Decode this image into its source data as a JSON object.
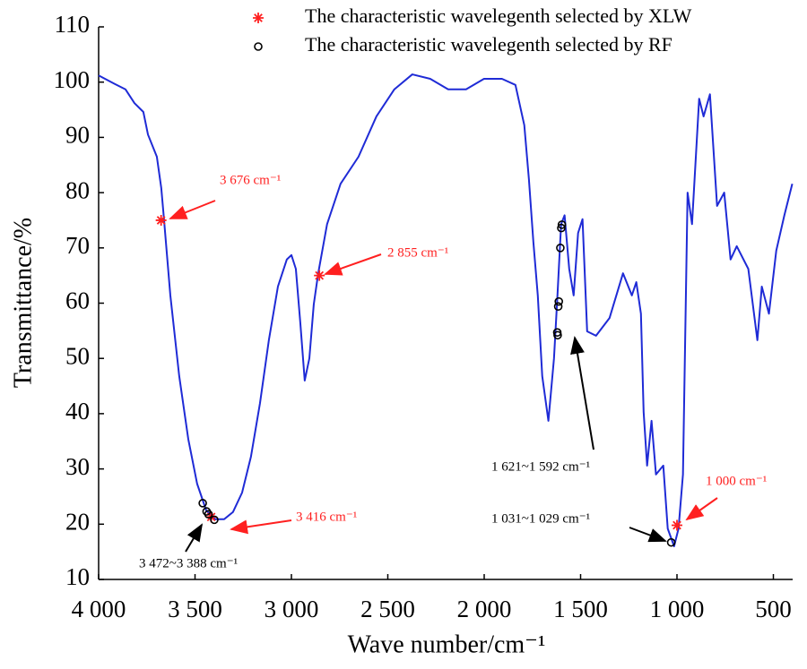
{
  "chart_data": {
    "type": "line",
    "xlabel": "Wave number/cm⁻¹",
    "ylabel": "Transmittance/%",
    "xlim": [
      4000,
      400
    ],
    "ylim": [
      10,
      110
    ],
    "xticks": [
      {
        "value": 4000,
        "label": "4 000"
      },
      {
        "value": 3500,
        "label": "3 500"
      },
      {
        "value": 3000,
        "label": "3 000"
      },
      {
        "value": 2500,
        "label": "2 500"
      },
      {
        "value": 2000,
        "label": "2 000"
      },
      {
        "value": 1500,
        "label": "1 500"
      },
      {
        "value": 1000,
        "label": "1 000"
      },
      500
    ],
    "yticks": [
      10,
      20,
      30,
      40,
      50,
      60,
      70,
      80,
      90,
      100,
      110
    ],
    "legend": "top",
    "series": [
      {
        "color": "#1f2bd6",
        "x": [
          4000,
          3907,
          3861,
          3814,
          3768,
          3744,
          3698,
          3675,
          3661,
          3628,
          3582,
          3535,
          3489,
          3442,
          3396,
          3349,
          3303,
          3256,
          3210,
          3163,
          3117,
          3070,
          3024,
          3000,
          2977,
          2954,
          2931,
          2907,
          2884,
          2861,
          2815,
          2745,
          2652,
          2559,
          2466,
          2373,
          2280,
          2187,
          2094,
          2001,
          1908,
          1838,
          1792,
          1768,
          1745,
          1722,
          1699,
          1667,
          1638,
          1620,
          1601,
          1583,
          1559,
          1536,
          1513,
          1490,
          1466,
          1420,
          1350,
          1280,
          1234,
          1211,
          1187,
          1173,
          1155,
          1132,
          1109,
          1071,
          1048,
          1015,
          992,
          969,
          945,
          922,
          885,
          862,
          829,
          792,
          755,
          722,
          690,
          630,
          583,
          560,
          523,
          485,
          443,
          402
        ],
        "values": [
          101.2,
          99.5,
          98.7,
          96.2,
          94.6,
          90.5,
          86.5,
          80.8,
          75.2,
          61.4,
          46.8,
          35.4,
          27.3,
          22.5,
          20.9,
          20.9,
          22.2,
          25.7,
          32.2,
          41.9,
          53.3,
          63,
          67.9,
          68.7,
          66.2,
          56.5,
          46,
          50,
          59.8,
          65.4,
          74.3,
          81.6,
          86.5,
          93.8,
          98.7,
          101.4,
          100.6,
          98.7,
          98.7,
          100.6,
          100.6,
          99.5,
          92.2,
          82.4,
          71.1,
          61.4,
          46.8,
          38.7,
          50,
          61.4,
          74.3,
          75.9,
          66.2,
          61.4,
          72.7,
          75.2,
          54.9,
          54.1,
          57.3,
          65.4,
          61.4,
          63.8,
          58.1,
          40.3,
          30.6,
          38.7,
          29,
          30.6,
          19.2,
          16,
          19.2,
          29,
          80,
          74.3,
          97,
          93.8,
          97.8,
          77.6,
          80,
          67.9,
          70.3,
          66.2,
          53.3,
          63,
          58.1,
          69.5,
          75.9,
          81.6
        ]
      },
      {
        "name": "The characteristic wavelegenth selected by XLW",
        "color": "#ff2020",
        "marker": "asterisk",
        "x": [
          3676,
          3416,
          2855,
          1000
        ],
        "values": [
          75,
          21.3,
          65,
          19.8
        ]
      },
      {
        "name": "The characteristic wavelegenth selected by RF",
        "color": "#000000",
        "marker": "circle",
        "x": [
          3460,
          3440,
          3430,
          3400,
          1621,
          1619,
          1616,
          1613,
          1605,
          1600,
          1597,
          1030
        ],
        "values": [
          23.8,
          22.3,
          21.8,
          20.8,
          54.7,
          54.2,
          59.4,
          60.3,
          70,
          73.6,
          74.2,
          16.7
        ]
      }
    ],
    "annotations": [
      {
        "text": "3 676 cm⁻¹",
        "color": "#ff2020"
      },
      {
        "text": "2 855 cm⁻¹",
        "color": "#ff2020"
      },
      {
        "text": "3 416 cm⁻¹",
        "color": "#ff2020"
      },
      {
        "text": "3 472~3 388 cm⁻¹",
        "color": "#000000"
      },
      {
        "text": "1 621~1 592 cm⁻¹",
        "color": "#000000"
      },
      {
        "text": "1 031~1 029 cm⁻¹",
        "color": "#000000"
      },
      {
        "text": "1 000 cm⁻¹",
        "color": "#ff2020"
      }
    ]
  }
}
